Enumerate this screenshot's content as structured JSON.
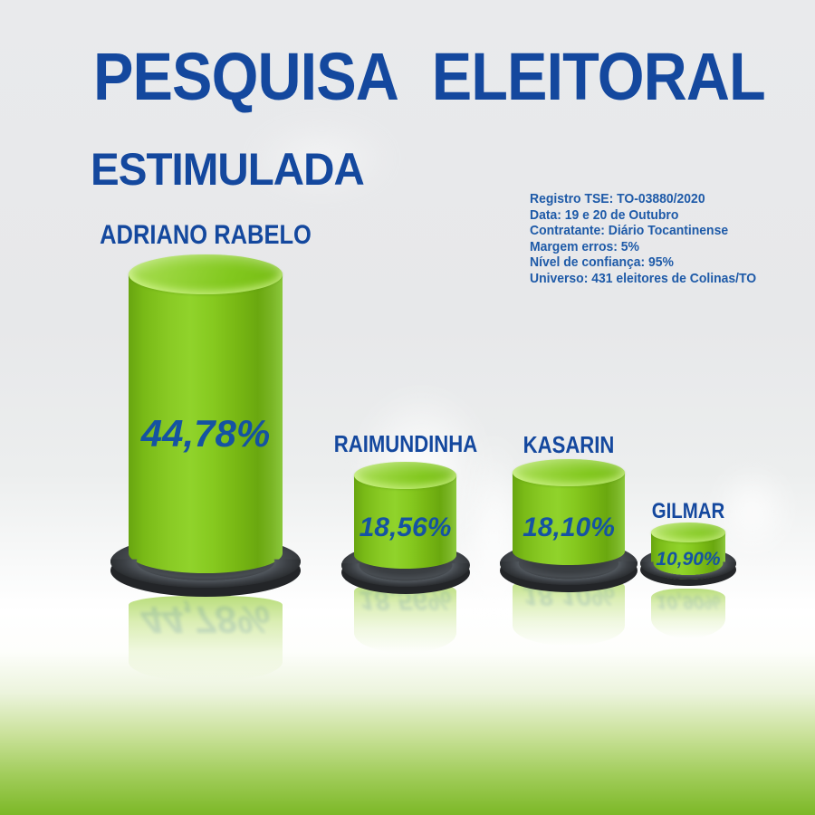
{
  "header": {
    "title": "PESQUISA ELEITORAL",
    "subtitle": "ESTIMULADA"
  },
  "methodology": {
    "lines": [
      "Registro TSE: TO-03880/2020",
      "Data: 19 e 20 de Outubro",
      "Contratante: Diário Tocantinense",
      "Margem erros: 5%",
      "Nível de confiança: 95%",
      "Universo: 431 eleitores de Colinas/TO"
    ]
  },
  "chart_data": {
    "type": "bar",
    "title": "PESQUISA ELEITORAL - ESTIMULADA",
    "categories": [
      "ADRIANO RABELO",
      "RAIMUNDINHA",
      "KASARIN",
      "GILMAR"
    ],
    "values": [
      44.78,
      18.56,
      18.1,
      10.9
    ],
    "value_labels": [
      "44,78%",
      "18,56%",
      "18,10%",
      "10,90%"
    ],
    "unit": "%",
    "bar_style": "3d-cylinder-on-dark-base",
    "legend_position": "none",
    "grid": false,
    "bar_color": "#84c81f",
    "base_color": "#33373a",
    "value_label_color": "#1553a2",
    "category_label_color": "#14489e"
  },
  "colors": {
    "title_blue": "#14489e",
    "info_blue": "#1e5aa8",
    "value_blue": "#1553a2",
    "cylinder_green_mid": "#84c81f",
    "cylinder_green_dark": "#68a510",
    "cylinder_green_light": "#98d53c",
    "reflection_green": "#cfe8a4",
    "base_dark": "#2b2e31",
    "background_top": "#e8e9eb",
    "background_bottom": "#7cb827"
  }
}
